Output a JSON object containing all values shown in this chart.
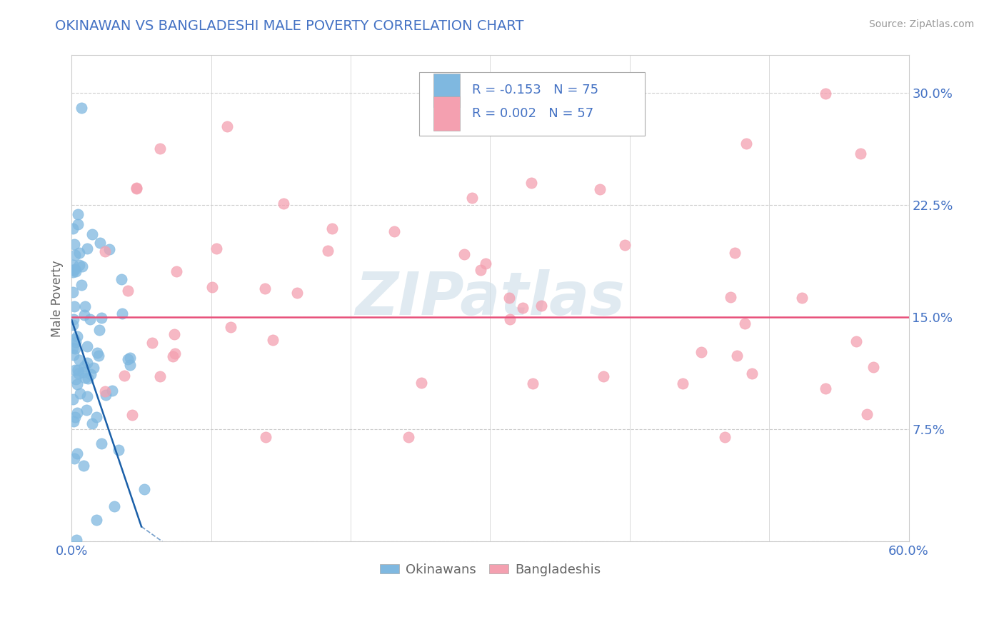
{
  "title": "OKINAWAN VS BANGLADESHI MALE POVERTY CORRELATION CHART",
  "source_text": "Source: ZipAtlas.com",
  "ylabel": "Male Poverty",
  "xlim": [
    0.0,
    0.6
  ],
  "ylim": [
    0.0,
    0.325
  ],
  "yticks": [
    0.0,
    0.075,
    0.15,
    0.225,
    0.3
  ],
  "ytick_labels": [
    "",
    "7.5%",
    "15.0%",
    "22.5%",
    "30.0%"
  ],
  "legend_r1": "R = -0.153",
  "legend_n1": "N = 75",
  "legend_r2": "R = 0.002",
  "legend_n2": "N = 57",
  "okinawan_color": "#7fb8e0",
  "bangladeshi_color": "#f4a0b0",
  "okinawan_line_color": "#1a5fa8",
  "bangladeshi_line_color": "#e8507a",
  "watermark": "ZIPatlas",
  "watermark_color": "#ccdde8",
  "background_color": "#ffffff",
  "grid_color": "#cccccc",
  "title_color": "#4472c4",
  "axis_label_color": "#666666",
  "tick_label_color": "#4472c4",
  "legend_text_color": "#4472c4",
  "source_color": "#999999",
  "okinawan_seed": 42,
  "bangladeshi_seed": 99
}
